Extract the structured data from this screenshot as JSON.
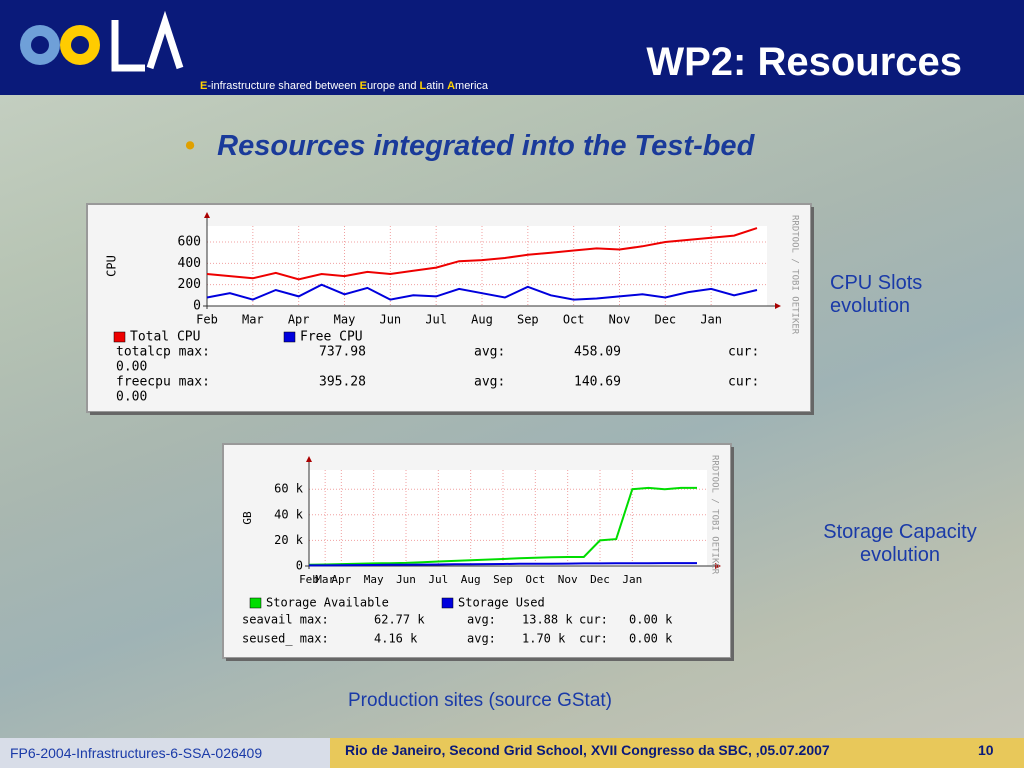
{
  "header": {
    "title": "WP2: Resources",
    "tagline": [
      "E",
      "-infrastructure shared between ",
      "E",
      "urope and ",
      "L",
      "atin ",
      "A",
      "merica"
    ]
  },
  "bullet": "Resources integrated into the Test-bed",
  "notes": [
    "CPU Slots evolution",
    "Storage Capacity evolution"
  ],
  "caption": "Production sites (source GStat)",
  "footer": {
    "left": "FP6-2004-Infrastructures-6-SSA-026409",
    "center": "Rio de Janeiro, Second Grid School, XVII Congresso da SBC, ,05.07.2007",
    "page": "10"
  },
  "chart_data": [
    {
      "type": "line",
      "side_label": "RRDTOOL / TOBI OETIKER",
      "ylabel": "CPU",
      "categories": [
        "Feb",
        null,
        "Mar",
        null,
        "Apr",
        null,
        "May",
        null,
        "Jun",
        null,
        "Jul",
        null,
        "Aug",
        null,
        "Sep",
        null,
        "Oct",
        null,
        "Nov",
        null,
        "Dec",
        null,
        "Jan",
        null,
        null
      ],
      "ylim": [
        0,
        750
      ],
      "yticks": [
        0,
        200,
        400,
        600
      ],
      "series": [
        {
          "name": "Total CPU",
          "color": "#ee0000",
          "values": [
            300,
            280,
            260,
            310,
            250,
            300,
            280,
            320,
            300,
            330,
            360,
            420,
            430,
            450,
            480,
            500,
            520,
            540,
            530,
            560,
            600,
            620,
            640,
            660,
            730
          ]
        },
        {
          "name": "Free CPU",
          "color": "#0000dd",
          "values": [
            80,
            120,
            60,
            150,
            90,
            200,
            110,
            170,
            60,
            100,
            90,
            160,
            120,
            80,
            180,
            100,
            60,
            70,
            90,
            110,
            80,
            130,
            160,
            100,
            150
          ]
        }
      ],
      "stats": [
        [
          "totalcp max:",
          "737.98",
          "avg:",
          "458.09",
          "cur:",
          "0.00"
        ],
        [
          "freecpu max:",
          "395.28",
          "avg:",
          "140.69",
          "cur:",
          "0.00"
        ]
      ]
    },
    {
      "type": "line",
      "side_label": "RRDTOOL / TOBI OETIKER",
      "ylabel": "GB",
      "categories": [
        "Feb",
        "Mar",
        "Apr",
        null,
        "May",
        null,
        "Jun",
        null,
        "Jul",
        null,
        "Aug",
        null,
        "Sep",
        null,
        "Oct",
        null,
        "Nov",
        null,
        "Dec",
        null,
        "Jan",
        null,
        null,
        null,
        null
      ],
      "ylim": [
        0,
        75000
      ],
      "yticks": [
        0,
        {
          "value": 20000,
          "label": "20 k"
        },
        {
          "value": 40000,
          "label": "40 k"
        },
        {
          "value": 60000,
          "label": "60 k"
        }
      ],
      "series": [
        {
          "name": "Storage Available",
          "color": "#00dd00",
          "values": [
            1000,
            1200,
            1500,
            1800,
            2000,
            2200,
            2400,
            3000,
            3500,
            4000,
            4500,
            5000,
            5500,
            6000,
            6500,
            6800,
            7000,
            7000,
            20000,
            21000,
            60000,
            61000,
            60000,
            61000,
            61000
          ]
        },
        {
          "name": "Storage Used",
          "color": "#0000dd",
          "values": [
            500,
            500,
            600,
            700,
            800,
            900,
            1000,
            1100,
            1200,
            1300,
            1400,
            1500,
            1600,
            1700,
            1800,
            1800,
            1900,
            2000,
            2000,
            2100,
            2200,
            2200,
            2300,
            2300,
            2300
          ]
        }
      ],
      "stats": [
        [
          "seavail max:",
          "62.77 k",
          "avg:",
          "13.88 k",
          "cur:",
          "0.00 k"
        ],
        [
          "seused_ max:",
          "4.16 k",
          "avg:",
          "1.70 k",
          "cur:",
          "0.00 k"
        ]
      ]
    }
  ]
}
